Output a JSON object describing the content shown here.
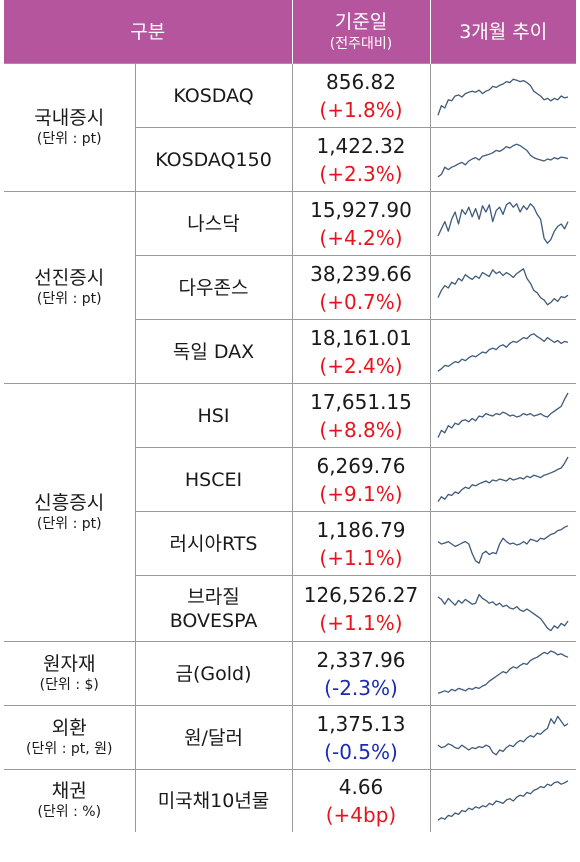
{
  "header": {
    "category": "구분",
    "base_date": "기준일",
    "base_sub": "(전주대비)",
    "trend": "3개월 추이"
  },
  "groups": [
    {
      "name": "국내증시",
      "unit": "(단위 : pt)",
      "rows": [
        {
          "name": "KOSDAQ",
          "value": "856.82",
          "change": "(+1.8%)",
          "dir": "up",
          "trend": [
            0.1,
            0.3,
            0.25,
            0.42,
            0.4,
            0.5,
            0.52,
            0.48,
            0.55,
            0.58,
            0.6,
            0.58,
            0.62,
            0.55,
            0.6,
            0.63,
            0.7,
            0.68,
            0.72,
            0.75,
            0.8,
            0.78,
            0.85,
            0.83,
            0.8,
            0.82,
            0.78,
            0.72,
            0.6,
            0.55,
            0.5,
            0.42,
            0.45,
            0.4,
            0.45,
            0.42,
            0.5,
            0.46,
            0.48
          ]
        },
        {
          "name": "KOSDAQ150",
          "value": "1,422.32",
          "change": "(+2.3%)",
          "dir": "up",
          "trend": [
            0.15,
            0.2,
            0.35,
            0.3,
            0.35,
            0.38,
            0.42,
            0.45,
            0.4,
            0.48,
            0.52,
            0.55,
            0.5,
            0.58,
            0.6,
            0.62,
            0.65,
            0.7,
            0.68,
            0.72,
            0.78,
            0.75,
            0.8,
            0.83,
            0.8,
            0.75,
            0.7,
            0.6,
            0.55,
            0.52,
            0.5,
            0.48,
            0.52,
            0.5,
            0.55,
            0.52,
            0.56,
            0.55,
            0.53
          ]
        }
      ]
    },
    {
      "name": "선진증시",
      "unit": "(단위 : pt)",
      "rows": [
        {
          "name": "나스닥",
          "value": "15,927.90",
          "change": "(+4.2%)",
          "dir": "up",
          "trend": [
            0.25,
            0.4,
            0.55,
            0.35,
            0.6,
            0.75,
            0.5,
            0.8,
            0.7,
            0.85,
            0.65,
            0.82,
            0.6,
            0.88,
            0.75,
            0.9,
            0.55,
            0.78,
            0.85,
            0.7,
            0.9,
            0.95,
            0.85,
            0.92,
            0.75,
            0.88,
            0.8,
            0.92,
            0.85,
            0.7,
            0.6,
            0.2,
            0.1,
            0.18,
            0.35,
            0.45,
            0.5,
            0.4,
            0.55
          ]
        },
        {
          "name": "다우존스",
          "value": "38,239.66",
          "change": "(+0.7%)",
          "dir": "up",
          "trend": [
            0.3,
            0.45,
            0.55,
            0.5,
            0.62,
            0.58,
            0.7,
            0.65,
            0.78,
            0.72,
            0.68,
            0.75,
            0.7,
            0.82,
            0.78,
            0.74,
            0.88,
            0.8,
            0.84,
            0.76,
            0.82,
            0.78,
            0.72,
            0.8,
            0.85,
            0.9,
            0.7,
            0.6,
            0.45,
            0.4,
            0.3,
            0.25,
            0.15,
            0.2,
            0.28,
            0.22,
            0.32,
            0.3,
            0.35
          ]
        },
        {
          "name": "독일 DAX",
          "value": "18,161.01",
          "change": "(+2.4%)",
          "dir": "up",
          "trend": [
            0.1,
            0.15,
            0.22,
            0.2,
            0.25,
            0.3,
            0.28,
            0.35,
            0.32,
            0.38,
            0.42,
            0.4,
            0.45,
            0.5,
            0.48,
            0.55,
            0.58,
            0.55,
            0.62,
            0.65,
            0.6,
            0.68,
            0.72,
            0.7,
            0.75,
            0.8,
            0.78,
            0.85,
            0.88,
            0.82,
            0.78,
            0.72,
            0.8,
            0.75,
            0.7,
            0.74,
            0.68,
            0.72,
            0.7
          ]
        }
      ]
    },
    {
      "name": "신흥증시",
      "unit": "(단위 : pt)",
      "rows": [
        {
          "name": "HSI",
          "value": "17,651.15",
          "change": "(+8.8%)",
          "dir": "up",
          "trend": [
            0.05,
            0.2,
            0.15,
            0.3,
            0.25,
            0.35,
            0.32,
            0.4,
            0.42,
            0.38,
            0.45,
            0.4,
            0.5,
            0.48,
            0.55,
            0.52,
            0.5,
            0.55,
            0.53,
            0.58,
            0.55,
            0.5,
            0.52,
            0.48,
            0.5,
            0.55,
            0.52,
            0.55,
            0.5,
            0.52,
            0.55,
            0.5,
            0.48,
            0.55,
            0.6,
            0.65,
            0.7,
            0.85,
            0.98
          ]
        },
        {
          "name": "HSCEI",
          "value": "6,269.76",
          "change": "(+9.1%)",
          "dir": "up",
          "trend": [
            0.05,
            0.15,
            0.1,
            0.2,
            0.18,
            0.25,
            0.22,
            0.3,
            0.35,
            0.32,
            0.4,
            0.38,
            0.42,
            0.45,
            0.48,
            0.44,
            0.5,
            0.48,
            0.52,
            0.5,
            0.48,
            0.54,
            0.5,
            0.52,
            0.55,
            0.52,
            0.58,
            0.55,
            0.6,
            0.58,
            0.55,
            0.6,
            0.62,
            0.65,
            0.68,
            0.72,
            0.75,
            0.85,
            0.98
          ]
        },
        {
          "name": "러시아RTS",
          "value": "1,186.79",
          "change": "(+1.1%)",
          "dir": "up",
          "trend": [
            0.55,
            0.5,
            0.52,
            0.55,
            0.5,
            0.45,
            0.48,
            0.52,
            0.55,
            0.5,
            0.3,
            0.15,
            0.1,
            0.3,
            0.35,
            0.28,
            0.32,
            0.3,
            0.5,
            0.62,
            0.55,
            0.5,
            0.52,
            0.48,
            0.5,
            0.55,
            0.5,
            0.6,
            0.58,
            0.55,
            0.62,
            0.6,
            0.65,
            0.7,
            0.72,
            0.78,
            0.8,
            0.85,
            0.88
          ]
        },
        {
          "name": "브라질 BOVESPA",
          "value": "126,526.27",
          "change": "(+1.1%)",
          "dir": "up",
          "trend": [
            0.75,
            0.7,
            0.6,
            0.72,
            0.65,
            0.58,
            0.68,
            0.62,
            0.7,
            0.65,
            0.6,
            0.62,
            0.8,
            0.72,
            0.68,
            0.62,
            0.65,
            0.58,
            0.62,
            0.55,
            0.58,
            0.52,
            0.5,
            0.55,
            0.48,
            0.45,
            0.5,
            0.45,
            0.4,
            0.35,
            0.3,
            0.2,
            0.1,
            0.05,
            0.15,
            0.1,
            0.2,
            0.15,
            0.25
          ]
        }
      ]
    },
    {
      "name": "원자재",
      "unit": "(단위 : $)",
      "rows": [
        {
          "name": "금(Gold)",
          "value": "2,337.96",
          "change": "(-2.3%)",
          "dir": "down",
          "trend": [
            0.1,
            0.12,
            0.15,
            0.12,
            0.18,
            0.15,
            0.2,
            0.18,
            0.15,
            0.2,
            0.18,
            0.22,
            0.2,
            0.25,
            0.28,
            0.35,
            0.4,
            0.45,
            0.5,
            0.55,
            0.52,
            0.6,
            0.65,
            0.62,
            0.68,
            0.72,
            0.7,
            0.78,
            0.82,
            0.85,
            0.9,
            0.95,
            0.92,
            0.98,
            0.95,
            0.9,
            0.92,
            0.88,
            0.85
          ]
        }
      ]
    },
    {
      "name": "외환",
      "unit": "(단위 : pt, 원)",
      "rows": [
        {
          "name": "원/달러",
          "value": "1,375.13",
          "change": "(-0.5%)",
          "dir": "down",
          "trend": [
            0.35,
            0.3,
            0.32,
            0.38,
            0.35,
            0.3,
            0.28,
            0.35,
            0.3,
            0.25,
            0.3,
            0.28,
            0.32,
            0.3,
            0.35,
            0.32,
            0.2,
            0.15,
            0.25,
            0.22,
            0.3,
            0.35,
            0.32,
            0.4,
            0.45,
            0.42,
            0.5,
            0.55,
            0.52,
            0.6,
            0.58,
            0.65,
            0.7,
            0.9,
            0.8,
            0.95,
            0.85,
            0.75,
            0.8
          ]
        }
      ]
    },
    {
      "name": "채권",
      "unit": "(단위 : %)",
      "rows": [
        {
          "name": "미국채10년물",
          "value": "4.66",
          "change": "(+4bp)",
          "dir": "up",
          "trend": [
            0.1,
            0.15,
            0.12,
            0.2,
            0.18,
            0.25,
            0.22,
            0.3,
            0.28,
            0.35,
            0.32,
            0.38,
            0.35,
            0.4,
            0.38,
            0.45,
            0.42,
            0.5,
            0.48,
            0.45,
            0.52,
            0.55,
            0.5,
            0.58,
            0.62,
            0.6,
            0.68,
            0.65,
            0.72,
            0.75,
            0.8,
            0.78,
            0.85,
            0.82,
            0.88,
            0.9,
            0.85,
            0.88,
            0.92
          ]
        }
      ]
    }
  ],
  "colors": {
    "header_bg": "#b4559e",
    "up": "#e8141b",
    "down": "#1a2bb3",
    "spark": "#3f5a7a"
  }
}
